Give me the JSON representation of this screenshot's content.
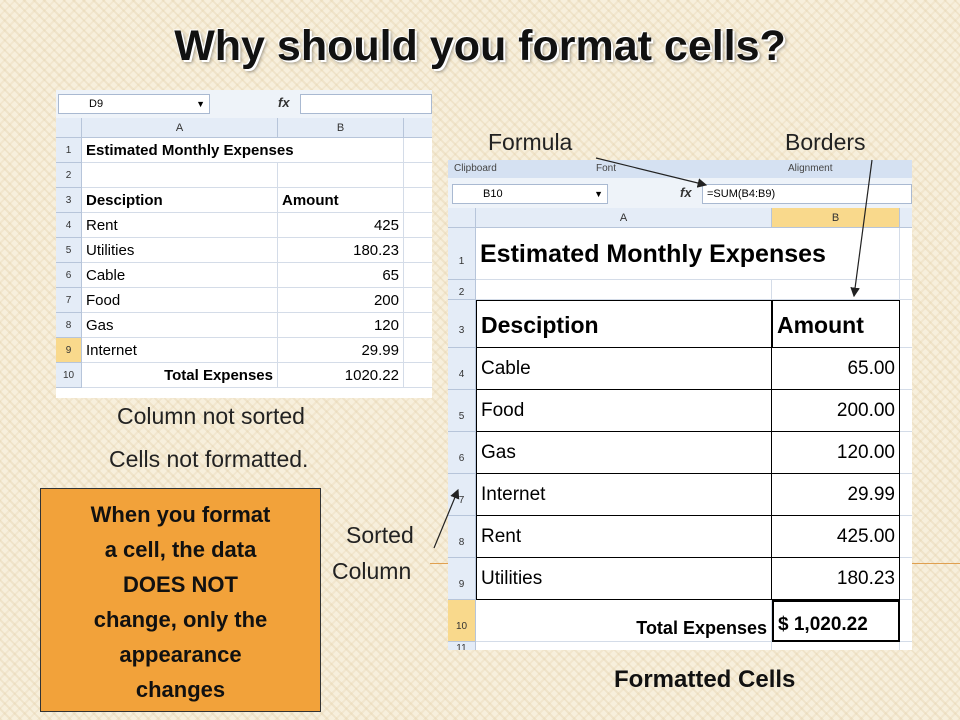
{
  "slide": {
    "title": "Why should you format cells?",
    "label_column_not_sorted": "Column not sorted",
    "label_cells_not_formatted": "Cells not formatted.",
    "label_formula": "Formula",
    "label_borders": "Borders",
    "label_sorted": "Sorted",
    "label_column": "Column",
    "label_formatted_cells": "Formatted Cells",
    "note_lines": [
      "When you format",
      "a cell, the data",
      "DOES NOT",
      "change, only the",
      "appearance",
      "changes"
    ]
  },
  "left_sheet": {
    "name_box": "D9",
    "formula": "",
    "columns": [
      "A",
      "B"
    ],
    "rows": [
      "1",
      "2",
      "3",
      "4",
      "5",
      "6",
      "7",
      "8",
      "9",
      "10"
    ],
    "title": "Estimated Monthly Expenses",
    "header_desc": "Desciption",
    "header_amount": "Amount",
    "items": [
      {
        "desc": "Rent",
        "amount": "425"
      },
      {
        "desc": "Utilities",
        "amount": "180.23"
      },
      {
        "desc": "Cable",
        "amount": "65"
      },
      {
        "desc": "Food",
        "amount": "200"
      },
      {
        "desc": "Gas",
        "amount": "120"
      },
      {
        "desc": "Internet",
        "amount": "29.99"
      }
    ],
    "total_label": "Total Expenses",
    "total_value": "1020.22"
  },
  "right_sheet": {
    "ribbon_groups": [
      "Clipboard",
      "Font",
      "Alignment"
    ],
    "name_box": "B10",
    "formula": "=SUM(B4:B9)",
    "columns": [
      "A",
      "B"
    ],
    "rows": [
      "1",
      "2",
      "3",
      "4",
      "5",
      "6",
      "7",
      "8",
      "9",
      "10",
      "11"
    ],
    "title": "Estimated Monthly Expenses",
    "header_desc": "Desciption",
    "header_amount": "Amount",
    "items": [
      {
        "desc": "Cable",
        "amount": "65.00"
      },
      {
        "desc": "Food",
        "amount": "200.00"
      },
      {
        "desc": "Gas",
        "amount": "120.00"
      },
      {
        "desc": "Internet",
        "amount": "29.99"
      },
      {
        "desc": "Rent",
        "amount": "425.00"
      },
      {
        "desc": "Utilities",
        "amount": "180.23"
      }
    ],
    "total_label": "Total Expenses",
    "total_value": "$ 1,020.22"
  },
  "icons": {
    "fx": "fx-icon",
    "dropdown": "chevron-down-icon"
  },
  "colors": {
    "note_bg": "#f2a23a",
    "selected_header": "#f9d98c",
    "header_bg": "#e4ecf7"
  }
}
